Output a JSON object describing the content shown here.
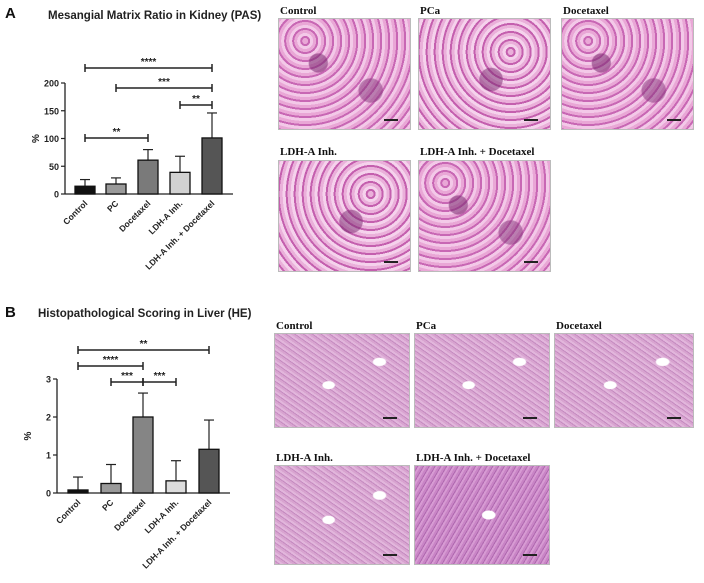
{
  "panels": [
    {
      "letter": "A",
      "title": "Mesangial Matrix Ratio in Kidney (PAS)",
      "images": [
        {
          "label": "Control"
        },
        {
          "label": "PCa"
        },
        {
          "label": "Docetaxel"
        },
        {
          "label": "LDH-A Inh."
        },
        {
          "label": "LDH-A Inh. + Docetaxel"
        }
      ]
    },
    {
      "letter": "B",
      "title": "Histopathological   Scoring in Liver (HE)",
      "images": [
        {
          "label": "Control"
        },
        {
          "label": "PCa"
        },
        {
          "label": "Docetaxel"
        },
        {
          "label": "LDH-A Inh."
        },
        {
          "label": "LDH-A Inh. + Docetaxel"
        }
      ]
    }
  ],
  "chart_data": [
    {
      "type": "bar",
      "title": "Mesangial Matrix Ratio in Kidney (PAS)",
      "xlabel": "",
      "ylabel": "%",
      "categories": [
        "Control",
        "PC",
        "Docetaxel",
        "LDH-A Inh.",
        "LDH-A Inh. + Docetaxel"
      ],
      "values": [
        14,
        18,
        61,
        39,
        101
      ],
      "error_upper": [
        26,
        29,
        80,
        68,
        146
      ],
      "bar_colors": [
        "#111111",
        "#9a9a9a",
        "#7a7a7a",
        "#d2d2d2",
        "#555555"
      ],
      "ylim": [
        0,
        200
      ],
      "yticks": [
        "0",
        "50",
        "100",
        "150",
        "200"
      ],
      "significance": [
        {
          "from": 0,
          "to": 4,
          "label": "****"
        },
        {
          "from": 1,
          "to": 4,
          "label": "***"
        },
        {
          "from": 3,
          "to": 4,
          "label": "**"
        },
        {
          "from": 0,
          "to": 2,
          "label": "**"
        }
      ]
    },
    {
      "type": "bar",
      "title": "Histopathological   Scoring in Liver (HE)",
      "xlabel": "",
      "ylabel": "%",
      "categories": [
        "Control",
        "PC",
        "Docetaxel",
        "LDH-A Inh.",
        "LDH-A Inh. + Docetaxel"
      ],
      "values": [
        0.08,
        0.25,
        2.0,
        0.32,
        1.15
      ],
      "error_upper": [
        0.42,
        0.75,
        2.63,
        0.85,
        1.92
      ],
      "bar_colors": [
        "#111111",
        "#9a9a9a",
        "#858585",
        "#dcdcdc",
        "#555555"
      ],
      "ylim": [
        0,
        3
      ],
      "yticks": [
        "0",
        "1",
        "2",
        "3"
      ],
      "significance": [
        {
          "from": 0,
          "to": 4,
          "label": "**"
        },
        {
          "from": 0,
          "to": 2,
          "label": "****"
        },
        {
          "from": 1,
          "to": 2,
          "label": "***"
        },
        {
          "from": 2,
          "to": 3,
          "label": "***"
        }
      ]
    }
  ]
}
